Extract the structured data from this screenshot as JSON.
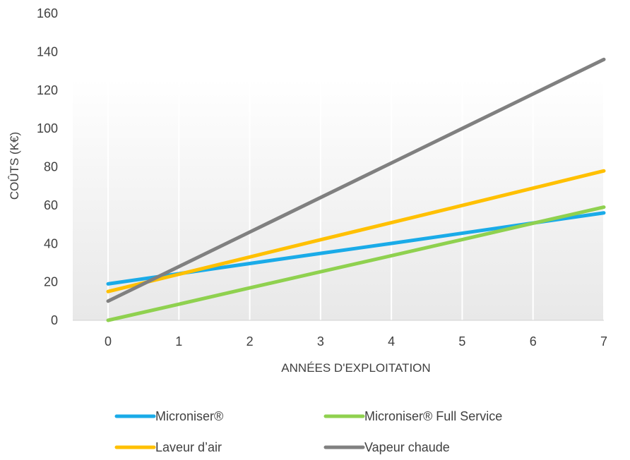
{
  "chart_data": {
    "type": "line",
    "title": "",
    "xlabel": "ANNÉES D'EXPLOITATION",
    "ylabel": "COÛTS (K€)",
    "x": [
      0,
      1,
      2,
      3,
      4,
      5,
      6,
      7
    ],
    "xlim": [
      0,
      7
    ],
    "ylim": [
      0,
      160
    ],
    "yticks": [
      0,
      20,
      40,
      60,
      80,
      100,
      120,
      140,
      160
    ],
    "xticks": [
      0,
      1,
      2,
      3,
      4,
      5,
      6,
      7
    ],
    "grid": "vertical",
    "legend_position": "bottom",
    "series": [
      {
        "name": "Microniser®",
        "color": "#1aabe8",
        "values": [
          19,
          24.3,
          29.6,
          34.9,
          40.1,
          45.4,
          50.7,
          56
        ]
      },
      {
        "name": "Microniser® Full Service",
        "color": "#8fd14f",
        "values": [
          0,
          8.4,
          16.9,
          25.3,
          33.7,
          42.1,
          50.6,
          59
        ]
      },
      {
        "name": "Laveur d’air",
        "color": "#ffc000",
        "values": [
          15,
          24,
          33,
          42,
          50.9,
          59.9,
          68.9,
          77.9
        ]
      },
      {
        "name": "Vapeur chaude",
        "color": "#808080",
        "values": [
          10,
          28,
          46,
          64,
          82,
          100,
          118,
          136
        ]
      }
    ]
  }
}
